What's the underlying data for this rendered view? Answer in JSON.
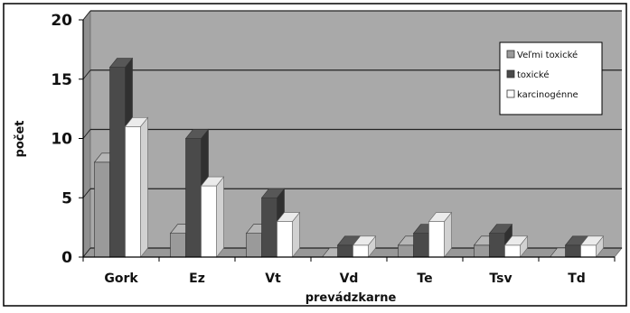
{
  "chart_data": {
    "type": "bar",
    "style": "3d-clustered-column",
    "categories": [
      "Gork",
      "Ez",
      "Vt",
      "Vd",
      "Te",
      "Tsv",
      "Td"
    ],
    "series": [
      {
        "name": "Veľmi toxické",
        "values": [
          8,
          2,
          2,
          0,
          1,
          1,
          0
        ]
      },
      {
        "name": "toxické",
        "values": [
          16,
          10,
          5,
          1,
          2,
          2,
          1
        ]
      },
      {
        "name": "karcinogénne",
        "values": [
          11,
          6,
          3,
          1,
          3,
          1,
          1
        ]
      }
    ],
    "title": "",
    "xlabel": "prevádzkarne",
    "ylabel": "počet",
    "ylim": [
      0,
      20
    ],
    "yticks": [
      "0",
      "5",
      "10",
      "15",
      "20"
    ],
    "grid": true,
    "legend_position": "right",
    "colors": {
      "plot_background": "#a9a9a9",
      "series": [
        "#9a9a9a",
        "#4a4a4a",
        "#ffffff"
      ],
      "gridline": "#222222",
      "frame": "#000000"
    }
  }
}
